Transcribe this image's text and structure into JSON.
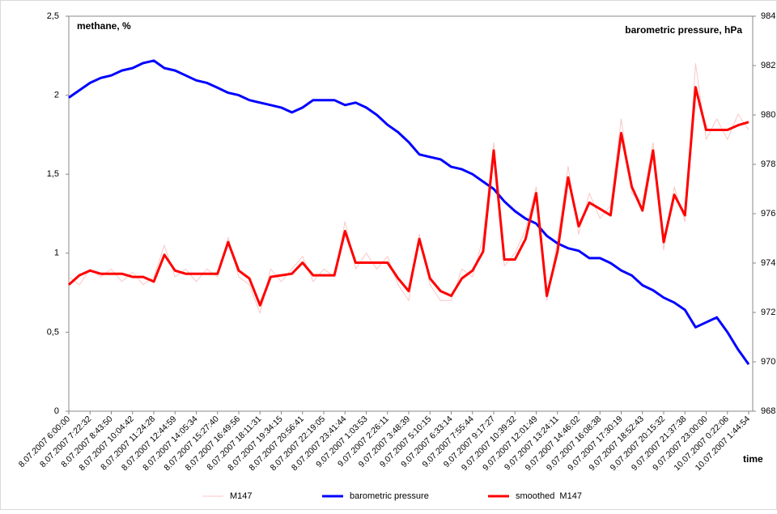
{
  "chart_data": {
    "type": "line",
    "y_label": "methane, %",
    "y2_label": "barometric pressure, hPa",
    "x_label": "time",
    "categories": [
      "8.07.2007 6:00:00",
      null,
      "8.07.2007 7:22:32",
      null,
      "8.07.2007 8:43:50",
      null,
      "8.07.2007 10:04:42",
      null,
      "8.07.2007 11:24:28",
      null,
      "8.07.2007 12:44:59",
      null,
      "8.07.2007 14:05:34",
      null,
      "8.07.2007 15:27:40",
      null,
      "8.07.2007 16:49:56",
      null,
      "8.07.2007 18:11:31",
      null,
      "8.07.2007 19:34:15",
      null,
      "8.07.2007 20:56:41",
      null,
      "8.07.2007 22:19:05",
      null,
      "8.07.2007 23:41:44",
      null,
      "9.07.2007 1:03:53",
      null,
      "9.07.2007 2:26:11",
      null,
      "9.07.2007 3:48:39",
      null,
      "9.07.2007 5:10:15",
      null,
      "9.07.2007 6:33:14",
      null,
      "9.07.2007 7:55:44",
      null,
      "9.07.2007 9:17:27",
      null,
      "9.07.2007 10:39:32",
      null,
      "9.07.2007 12:01:49",
      null,
      "9.07.2007 13:24:11",
      null,
      "9.07.2007 14:46:02",
      null,
      "9.07.2007 16:08:38",
      null,
      "9.07.2007 17:30:19",
      null,
      "9.07.2007 18:52:43",
      null,
      "9.07.2007 20:15:32",
      null,
      "9.07.2007 21:37:38",
      null,
      "9.07.2007 23:00:00",
      null,
      "10.07.2007 0:22:06",
      null,
      "10.07.2007 1:44:54"
    ],
    "series": [
      {
        "name": "M147",
        "color": "#f8c8c4",
        "width": 1,
        "values": [
          0.85,
          0.8,
          0.9,
          0.85,
          0.9,
          0.82,
          0.88,
          0.8,
          0.85,
          1.05,
          0.85,
          0.9,
          0.82,
          0.9,
          0.85,
          1.1,
          0.85,
          0.8,
          0.62,
          0.9,
          0.82,
          0.9,
          0.98,
          0.82,
          0.9,
          0.85,
          1.2,
          0.9,
          1.0,
          0.9,
          0.98,
          0.8,
          0.7,
          1.12,
          0.8,
          0.7,
          0.7,
          0.9,
          0.85,
          1.1,
          1.7,
          0.92,
          1.0,
          1.15,
          1.42,
          0.7,
          1.08,
          1.55,
          1.12,
          1.38,
          1.22,
          1.3,
          1.85,
          1.38,
          1.32,
          1.7,
          1.02,
          1.42,
          1.2,
          2.2,
          1.72,
          1.85,
          1.72,
          1.88,
          1.78
        ]
      },
      {
        "name": "barometric pressure",
        "color": "#0000ff",
        "width": 3,
        "axis": "y2",
        "values": [
          980.7,
          981.0,
          981.3,
          981.5,
          981.6,
          981.8,
          981.9,
          982.1,
          982.2,
          981.9,
          981.8,
          981.6,
          981.4,
          981.3,
          981.1,
          980.9,
          980.8,
          980.6,
          980.5,
          980.4,
          980.3,
          980.1,
          980.3,
          980.6,
          980.6,
          980.6,
          980.4,
          980.5,
          980.3,
          980.0,
          979.6,
          979.3,
          978.9,
          978.4,
          978.3,
          978.2,
          977.9,
          977.8,
          977.6,
          977.3,
          977.0,
          976.5,
          976.1,
          975.8,
          975.6,
          975.1,
          974.8,
          974.6,
          974.5,
          974.2,
          974.2,
          974.0,
          973.7,
          973.5,
          973.1,
          972.9,
          972.6,
          972.4,
          972.1,
          971.4,
          971.6,
          971.8,
          971.2,
          970.5,
          969.9
        ]
      },
      {
        "name": "smoothed  M147",
        "color": "#ff0000",
        "width": 3,
        "values": [
          0.8,
          0.86,
          0.89,
          0.87,
          0.87,
          0.87,
          0.85,
          0.85,
          0.82,
          0.99,
          0.89,
          0.87,
          0.87,
          0.87,
          0.87,
          1.07,
          0.89,
          0.84,
          0.67,
          0.85,
          0.86,
          0.87,
          0.94,
          0.86,
          0.86,
          0.86,
          1.14,
          0.94,
          0.94,
          0.94,
          0.94,
          0.84,
          0.76,
          1.09,
          0.84,
          0.76,
          0.73,
          0.84,
          0.89,
          1.01,
          1.65,
          0.96,
          0.96,
          1.09,
          1.38,
          0.73,
          1.01,
          1.48,
          1.17,
          1.32,
          1.28,
          1.24,
          1.76,
          1.42,
          1.27,
          1.65,
          1.07,
          1.37,
          1.24,
          2.05,
          1.78,
          1.78,
          1.78,
          1.81,
          1.83
        ]
      }
    ],
    "ylim": [
      0,
      2.5
    ],
    "yticks": [
      0,
      {
        "value": 0.5,
        "label": "0,5"
      },
      1,
      {
        "value": 1.5,
        "label": "1,5"
      },
      2,
      {
        "value": 2.5,
        "label": "2,5"
      }
    ],
    "y2lim": [
      968,
      984
    ],
    "y2ticks": [
      968,
      970,
      972,
      974,
      976,
      978,
      980,
      982,
      984
    ],
    "grid": false,
    "legend": "bottom"
  }
}
